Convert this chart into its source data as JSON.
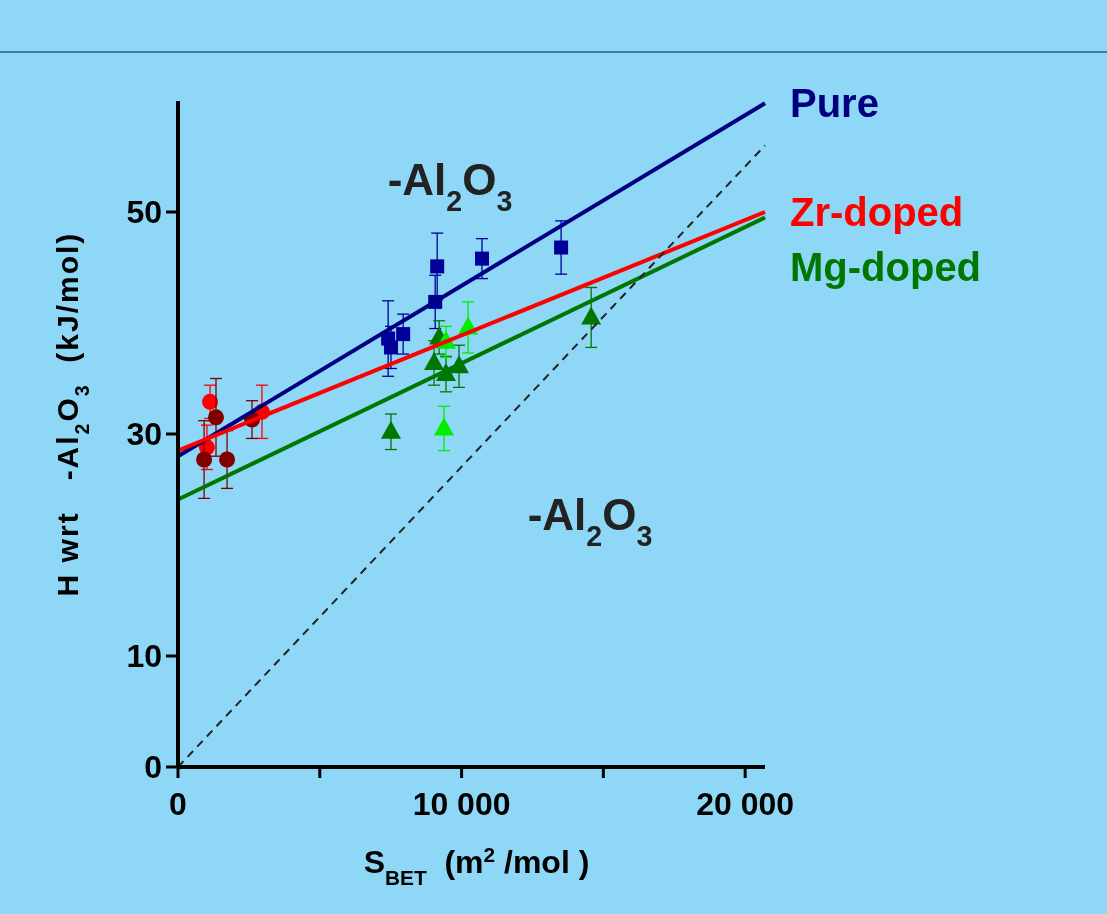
{
  "chart_data": {
    "type": "scatter",
    "xlabel": "S$_{BET}$  (m$^{2}$ /mol )",
    "ylabel": "H wrt   -Al$_{2}$O$_{3}$  (kJ/mol)",
    "xlim": [
      0,
      20700
    ],
    "ylim": [
      0,
      60
    ],
    "xticks": [
      0,
      {
        "value": 5000,
        "label": null
      },
      {
        "value": 10000,
        "label": "10 000"
      },
      {
        "value": 15000,
        "label": null
      },
      {
        "value": 20000,
        "label": "20 000"
      }
    ],
    "yticks": [
      0,
      10,
      30,
      50
    ],
    "grid": false,
    "annotations": [
      "-Al$_{2}$O$_{3}$",
      "-Al$_{2}$O$_{3}$"
    ],
    "series": [
      {
        "type": "line",
        "name": "Pure",
        "color": "#000080",
        "x": [
          0,
          20700
        ],
        "values": [
          28.0,
          59.8
        ]
      },
      {
        "type": "line",
        "name": "Zr-doped",
        "color": "#ff0000",
        "x": [
          0,
          20700
        ],
        "values": [
          28.5,
          50.0
        ]
      },
      {
        "type": "line",
        "name": "Mg-doped",
        "color": "#007700",
        "x": [
          0,
          20700
        ],
        "values": [
          24.1,
          49.5
        ]
      },
      {
        "type": "line",
        "color": "#222222",
        "line_style": "dashed",
        "x": [
          0,
          20700
        ],
        "values": [
          0,
          56.0
        ]
      },
      {
        "marker": "circle",
        "color": "#ff0000",
        "x": [
          1130,
          1020,
          2960
        ],
        "values": [
          32.9,
          28.8,
          32.0
        ],
        "errors": [
          1.5,
          2,
          2.4
        ]
      },
      {
        "marker": "circle",
        "color": "#800000",
        "x": [
          1340,
          920,
          1730,
          2610
        ],
        "values": [
          31.5,
          27.7,
          27.7,
          31.3
        ],
        "errors": [
          3.5,
          3.5,
          2.6,
          1.7
        ]
      },
      {
        "marker": "square",
        "color": "#000099",
        "x": [
          9140,
          10720,
          13510,
          9070,
          7410,
          7510,
          7940
        ],
        "values": [
          45.1,
          45.8,
          46.8,
          41.9,
          38.6,
          37.8,
          39.0
        ],
        "errors": [
          3,
          1.8,
          2.4,
          2.4,
          3.4,
          1.9,
          1.8
        ]
      },
      {
        "marker": "triangle",
        "color": "#007700",
        "x": [
          7510,
          14570,
          9210,
          9030,
          9450,
          9910
        ],
        "values": [
          30.2,
          40.5,
          38.7,
          36.4,
          35.4,
          36.1
        ],
        "errors": [
          1.6,
          2.7,
          1.5,
          2,
          1.6,
          1.9
        ]
      },
      {
        "marker": "triangle",
        "color": "#00ee00",
        "x": [
          10230,
          9450,
          9380
        ],
        "values": [
          39.6,
          38.3,
          30.5
        ],
        "errors": [
          2.3,
          1.4,
          2
        ]
      }
    ]
  }
}
